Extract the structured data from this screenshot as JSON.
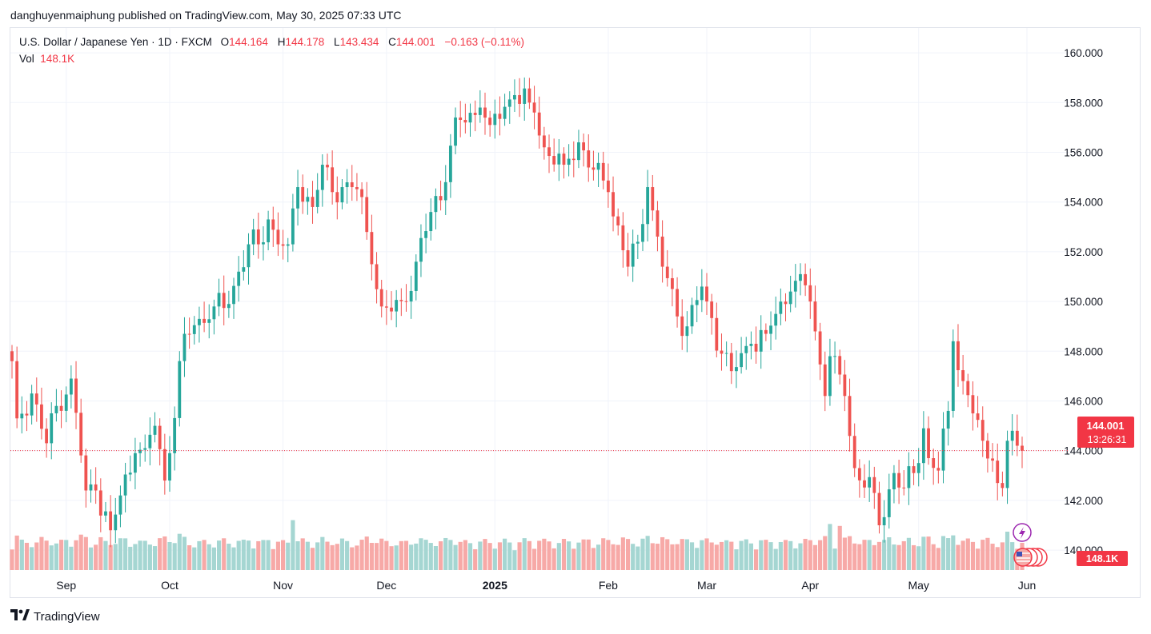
{
  "publisher_line": "danghuyenmaiphung published on TradingView.com, May 30, 2025 07:33 UTC",
  "legend": {
    "symbol": "U.S. Dollar / Japanese Yen · 1D · FXCM",
    "o_key": "O",
    "o_val": "144.164",
    "h_key": "H",
    "h_val": "144.178",
    "l_key": "L",
    "l_val": "143.434",
    "c_key": "C",
    "c_val": "144.001",
    "change": "−0.163 (−0.11%)",
    "vol_key": "Vol",
    "vol_val": "148.1K"
  },
  "price_badge": {
    "price": "144.001",
    "countdown": "13:26:31"
  },
  "volume_badge": "148.1K",
  "footer": {
    "brand": "TradingView",
    "logo_icon": "tradingview-logo-icon"
  },
  "colors": {
    "up": "#26a69a",
    "down": "#ef5350",
    "up_vol": "#a5d6d2",
    "down_vol": "#f7a9a7",
    "badge": "#f23645",
    "grid": "#f0f3fa"
  },
  "chart_data": {
    "type": "candlestick",
    "ylim": [
      139.2,
      161.0
    ],
    "y_ticks": [
      "160.000",
      "158.000",
      "156.000",
      "154.000",
      "152.000",
      "150.000",
      "148.000",
      "146.000",
      "144.000",
      "142.000",
      "140.000"
    ],
    "x_labels": [
      "Sep",
      "Oct",
      "Nov",
      "Dec",
      "2025",
      "Feb",
      "Mar",
      "Apr",
      "May",
      "Jun"
    ],
    "last_price": 144.001,
    "anchors": [
      [
        "2024-08-16",
        147.6
      ],
      [
        "2024-08-19",
        145.3
      ],
      [
        "2024-08-22",
        146.3
      ],
      [
        "2024-08-27",
        144.3
      ],
      [
        "2024-08-29",
        145.8
      ],
      [
        "2024-09-03",
        146.9
      ],
      [
        "2024-09-06",
        142.4
      ],
      [
        "2024-09-10",
        142.4
      ],
      [
        "2024-09-13",
        140.8
      ],
      [
        "2024-09-17",
        142.2
      ],
      [
        "2024-09-20",
        143.9
      ],
      [
        "2024-09-24",
        144.1
      ],
      [
        "2024-09-26",
        145.0
      ],
      [
        "2024-09-30",
        142.8
      ],
      [
        "2024-10-01",
        143.9
      ],
      [
        "2024-10-04",
        148.7
      ],
      [
        "2024-10-09",
        149.3
      ],
      [
        "2024-10-14",
        149.8
      ],
      [
        "2024-10-17",
        149.9
      ],
      [
        "2024-10-21",
        151.2
      ],
      [
        "2024-10-23",
        152.3
      ],
      [
        "2024-10-25",
        152.3
      ],
      [
        "2024-10-29",
        153.3
      ],
      [
        "2024-10-31",
        152.3
      ],
      [
        "2024-11-04",
        152.3
      ],
      [
        "2024-11-06",
        154.6
      ],
      [
        "2024-11-11",
        153.8
      ],
      [
        "2024-11-13",
        155.5
      ],
      [
        "2024-11-15",
        154.4
      ],
      [
        "2024-11-19",
        154.6
      ],
      [
        "2024-11-21",
        154.6
      ],
      [
        "2024-11-25",
        154.2
      ],
      [
        "2024-11-27",
        151.5
      ],
      [
        "2024-11-29",
        149.8
      ],
      [
        "2024-12-03",
        149.6
      ],
      [
        "2024-12-06",
        150.0
      ],
      [
        "2024-12-10",
        151.6
      ],
      [
        "2024-12-13",
        153.6
      ],
      [
        "2024-12-18",
        154.8
      ],
      [
        "2024-12-20",
        157.4
      ],
      [
        "2024-12-24",
        157.2
      ],
      [
        "2024-12-27",
        157.8
      ],
      [
        "2024-12-31",
        157.1
      ],
      [
        "2025-01-07",
        158.3
      ],
      [
        "2025-01-10",
        158.0
      ],
      [
        "2025-01-13",
        157.6
      ],
      [
        "2025-01-15",
        156.2
      ],
      [
        "2025-01-21",
        155.5
      ],
      [
        "2025-01-24",
        156.4
      ],
      [
        "2025-01-29",
        155.3
      ],
      [
        "2025-02-03",
        154.4
      ],
      [
        "2025-02-07",
        151.4
      ],
      [
        "2025-02-11",
        152.4
      ],
      [
        "2025-02-13",
        154.6
      ],
      [
        "2025-02-18",
        151.4
      ],
      [
        "2025-02-21",
        149.4
      ],
      [
        "2025-02-25",
        149.0
      ],
      [
        "2025-02-28",
        150.6
      ],
      [
        "2025-03-03",
        150.0
      ],
      [
        "2025-03-06",
        147.9
      ],
      [
        "2025-03-10",
        147.2
      ],
      [
        "2025-03-14",
        148.3
      ],
      [
        "2025-03-19",
        148.7
      ],
      [
        "2025-03-21",
        149.5
      ],
      [
        "2025-03-26",
        150.4
      ],
      [
        "2025-03-28",
        151.1
      ],
      [
        "2025-04-01",
        150.0
      ],
      [
        "2025-04-04",
        146.2
      ],
      [
        "2025-04-07",
        147.8
      ],
      [
        "2025-04-10",
        146.2
      ],
      [
        "2025-04-14",
        143.3
      ],
      [
        "2025-04-18",
        142.3
      ],
      [
        "2025-04-21",
        141.0
      ],
      [
        "2025-04-24",
        143.1
      ],
      [
        "2025-04-28",
        142.5
      ],
      [
        "2025-04-30",
        143.1
      ],
      [
        "2025-05-02",
        144.9
      ],
      [
        "2025-05-05",
        143.7
      ],
      [
        "2025-05-07",
        143.2
      ],
      [
        "2025-05-09",
        145.6
      ],
      [
        "2025-05-12",
        148.4
      ],
      [
        "2025-05-14",
        146.8
      ],
      [
        "2025-05-16",
        145.5
      ],
      [
        "2025-05-20",
        144.4
      ],
      [
        "2025-05-22",
        143.6
      ],
      [
        "2025-05-23",
        142.7
      ],
      [
        "2025-05-26",
        142.5
      ],
      [
        "2025-05-27",
        144.4
      ],
      [
        "2025-05-28",
        144.8
      ],
      [
        "2025-05-29",
        144.2
      ],
      [
        "2025-05-30",
        144.0
      ]
    ],
    "volume_spikes": [
      [
        "2024-11-05",
        2.6
      ],
      [
        "2025-04-07",
        2.4
      ],
      [
        "2025-04-09",
        2.3
      ],
      [
        "2025-05-27",
        2.0
      ]
    ]
  }
}
